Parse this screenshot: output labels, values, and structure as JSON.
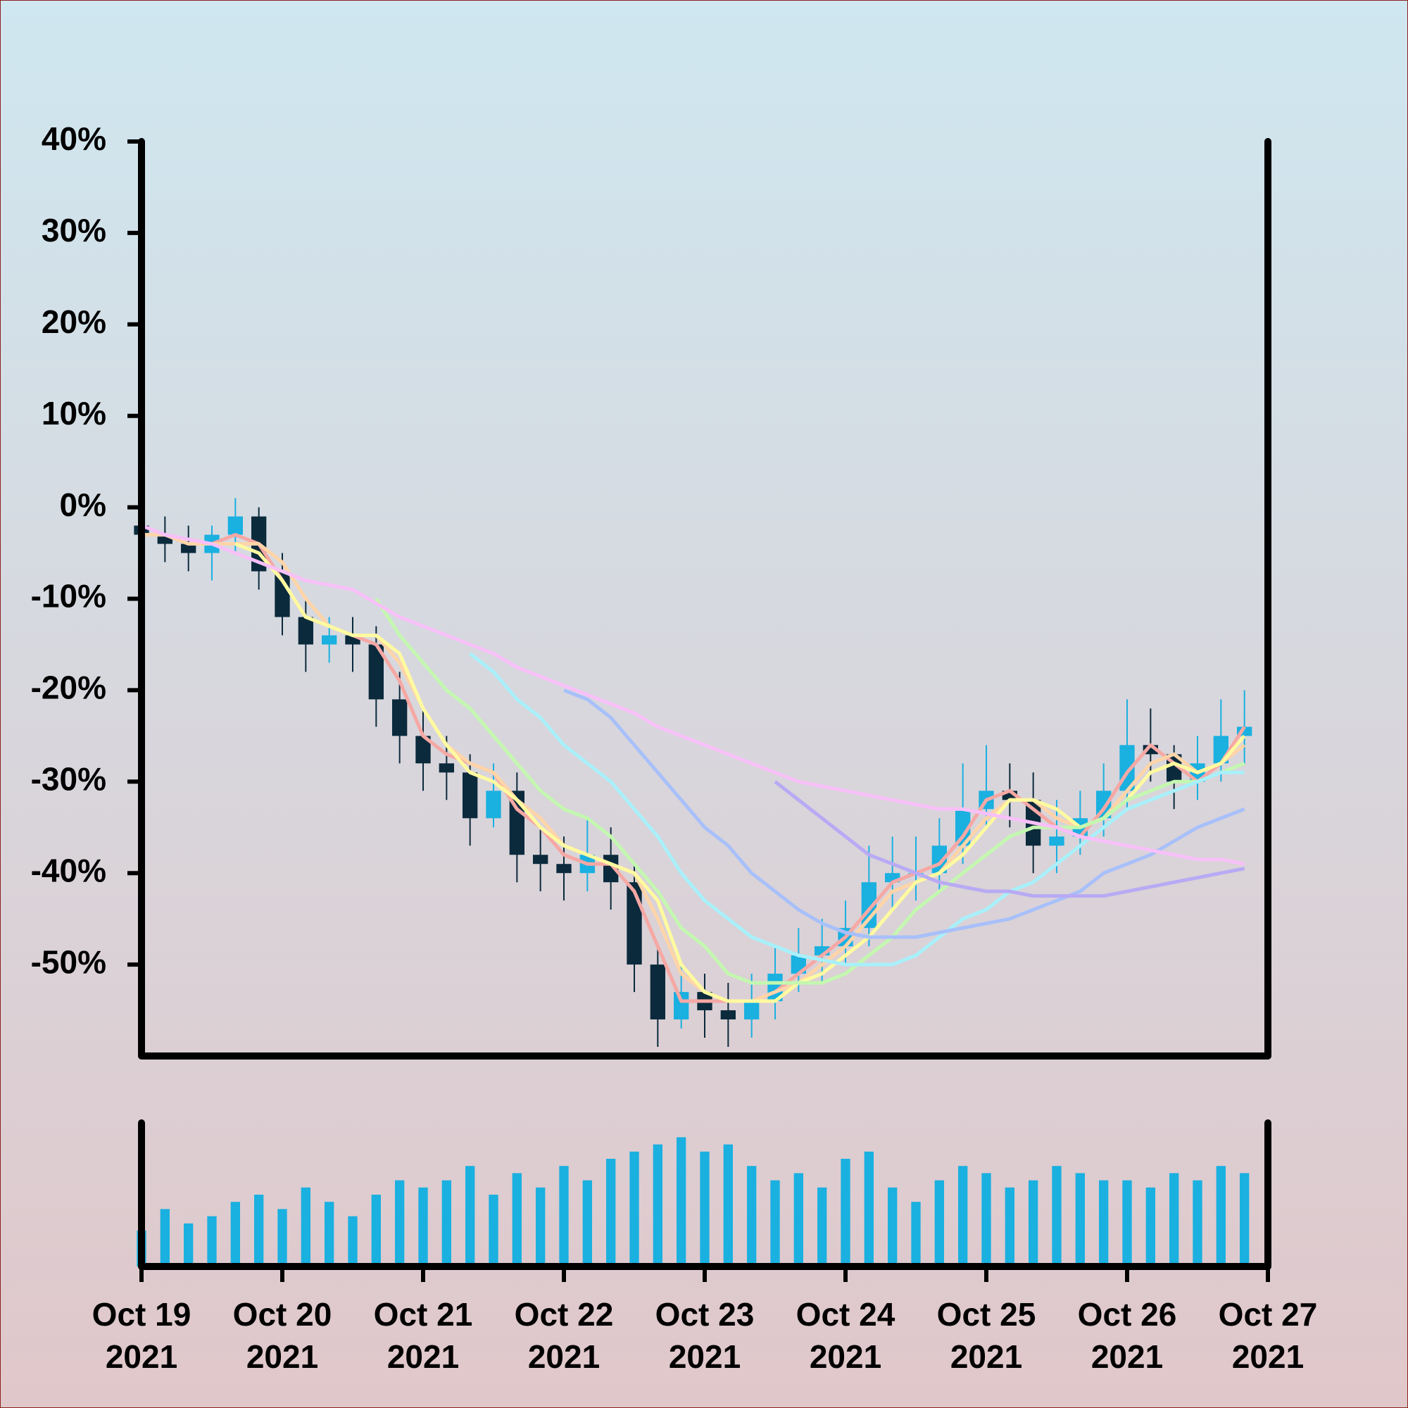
{
  "chart_data": [
    {
      "type": "candlestick",
      "x": [
        0,
        4,
        8,
        12,
        16,
        20,
        24,
        28,
        32,
        36,
        40,
        44,
        48,
        52,
        56,
        60,
        64,
        68,
        72,
        76,
        80,
        84,
        88,
        92,
        96,
        100,
        104,
        108,
        112,
        116,
        120,
        124,
        128,
        132,
        136,
        140,
        144,
        148,
        152,
        156,
        160,
        164,
        168,
        172,
        176,
        180,
        184,
        188
      ],
      "open": [
        -2,
        -3,
        -4,
        -5,
        -3,
        -1,
        -7,
        -12,
        -15,
        -14,
        -15,
        -21,
        -25,
        -28,
        -29,
        -34,
        -31,
        -38,
        -39,
        -40,
        -38,
        -41,
        -50,
        -56,
        -53,
        -55,
        -56,
        -54,
        -51,
        -49,
        -48,
        -46,
        -41,
        -40,
        -40,
        -37,
        -33,
        -31,
        -32,
        -37,
        -36,
        -34,
        -31,
        -26,
        -27,
        -30,
        -28,
        -25
      ],
      "high": [
        0,
        -1,
        -2,
        -2,
        1,
        0,
        -5,
        -10,
        -12,
        -12,
        -13,
        -18,
        -22,
        -25,
        -27,
        -28,
        -29,
        -35,
        -36,
        -34,
        -35,
        -39,
        -48,
        -50,
        -51,
        -52,
        -51,
        -48,
        -46,
        -45,
        -43,
        -37,
        -36,
        -36,
        -34,
        -28,
        -26,
        -28,
        -29,
        -32,
        -31,
        -28,
        -21,
        -22,
        -26,
        -25,
        -21,
        -20
      ],
      "low": [
        -6,
        -6,
        -7,
        -8,
        -5,
        -9,
        -14,
        -18,
        -17,
        -18,
        -24,
        -28,
        -31,
        -32,
        -37,
        -35,
        -41,
        -42,
        -43,
        -42,
        -44,
        -53,
        -59,
        -57,
        -58,
        -59,
        -58,
        -56,
        -53,
        -52,
        -50,
        -48,
        -44,
        -43,
        -42,
        -39,
        -35,
        -35,
        -40,
        -40,
        -38,
        -36,
        -33,
        -30,
        -33,
        -32,
        -30,
        -28
      ],
      "close": [
        -3,
        -4,
        -5,
        -3,
        -1,
        -7,
        -12,
        -15,
        -14,
        -15,
        -21,
        -25,
        -28,
        -29,
        -34,
        -31,
        -38,
        -39,
        -40,
        -38,
        -41,
        -50,
        -56,
        -53,
        -55,
        -56,
        -54,
        -51,
        -49,
        -48,
        -46,
        -41,
        -40,
        -40,
        -37,
        -33,
        -31,
        -32,
        -37,
        -36,
        -34,
        -31,
        -26,
        -27,
        -30,
        -28,
        -25,
        -24
      ],
      "up_color": "#1ab0e0",
      "down_color": "#0b2a3c",
      "series": [
        {
          "color": "#f6a8a4",
          "values": [
            -3,
            -3,
            -4,
            -4,
            -3,
            -4,
            -8,
            -12,
            -13,
            -14,
            -15,
            -19,
            -25,
            -27,
            -28,
            -29,
            -33,
            -35,
            -38,
            -39,
            -39,
            -42,
            -48,
            -54,
            -54,
            -54,
            -54,
            -53,
            -51,
            -49,
            -47,
            -44,
            -41,
            -40,
            -39,
            -36,
            -32,
            -31,
            -33,
            -35,
            -36,
            -33,
            -29,
            -26,
            -28,
            -30,
            -28,
            -24
          ]
        },
        {
          "color": "#ffd4a8",
          "values": [
            -3,
            -3,
            -4,
            -4,
            -4,
            -4,
            -6,
            -10,
            -13,
            -14,
            -14,
            -17,
            -22,
            -26,
            -28,
            -29,
            -32,
            -34,
            -37,
            -38,
            -39,
            -40,
            -45,
            -51,
            -53,
            -54,
            -54,
            -53,
            -52,
            -50,
            -48,
            -45,
            -42,
            -41,
            -40,
            -37,
            -34,
            -32,
            -32,
            -34,
            -35,
            -34,
            -31,
            -28,
            -27,
            -29,
            -28,
            -26
          ]
        },
        {
          "color": "#fffaa0",
          "values": [
            null,
            null,
            null,
            null,
            -4,
            -5,
            -8,
            -12,
            -13,
            -14,
            -14,
            -16,
            -22,
            -26,
            -29,
            -30,
            -32,
            -35,
            -37,
            -38,
            -39,
            -40,
            -43,
            -50,
            -53,
            -54,
            -54,
            -54,
            -52,
            -51,
            -49,
            -47,
            -44,
            -41,
            -40,
            -38,
            -35,
            -32,
            -32,
            -33,
            -35,
            -34,
            -32,
            -29,
            -28,
            -29,
            -28,
            -25
          ]
        },
        {
          "color": "#c4f7b0",
          "values": [
            null,
            null,
            null,
            null,
            null,
            null,
            null,
            null,
            null,
            null,
            -10,
            -14,
            -17,
            -20,
            -22,
            -25,
            -28,
            -31,
            -33,
            -34,
            -36,
            -39,
            -42,
            -46,
            -48,
            -51,
            -52,
            -52,
            -52,
            -52,
            -51,
            -49,
            -47,
            -44,
            -42,
            -40,
            -38,
            -36,
            -35,
            -35,
            -35,
            -34,
            -32,
            -31,
            -30,
            -30,
            -29,
            -28
          ]
        },
        {
          "color": "#a8f0fa",
          "values": [
            null,
            null,
            null,
            null,
            null,
            null,
            null,
            null,
            null,
            null,
            null,
            null,
            null,
            null,
            -16,
            -18,
            -21,
            -23,
            -26,
            -28,
            -30,
            -33,
            -36,
            -40,
            -43,
            -45,
            -47,
            -48,
            -49,
            -49.5,
            -50,
            -50,
            -50,
            -49,
            -47,
            -45,
            -44,
            -42,
            -41,
            -39,
            -37,
            -35,
            -33,
            -32,
            -31,
            -30,
            -29,
            -29
          ]
        },
        {
          "color": "#a8c0fa",
          "values": [
            null,
            null,
            null,
            null,
            null,
            null,
            null,
            null,
            null,
            null,
            null,
            null,
            null,
            null,
            null,
            null,
            null,
            null,
            -20,
            -21,
            -23,
            -26,
            -29,
            -32,
            -35,
            -37,
            -40,
            -42,
            -44,
            -45.5,
            -46.5,
            -47,
            -47,
            -47,
            -46.5,
            -46,
            -45.5,
            -45,
            -44,
            -43,
            -42,
            -40,
            -39,
            -38,
            -36.5,
            -35,
            -34,
            -33
          ]
        },
        {
          "color": "#b8aaf4",
          "values": [
            null,
            null,
            null,
            null,
            null,
            null,
            null,
            null,
            null,
            null,
            null,
            null,
            null,
            null,
            null,
            null,
            null,
            null,
            null,
            null,
            null,
            null,
            null,
            null,
            null,
            null,
            null,
            -30,
            -32,
            -34,
            -36,
            -38,
            -39,
            -40,
            -41,
            -41.5,
            -42,
            -42,
            -42.5,
            -42.5,
            -42.5,
            -42.5,
            -42,
            -41.5,
            -41,
            -40.5,
            -40,
            -39.5
          ]
        },
        {
          "color": "#f8c0f8",
          "values": [
            -2,
            -3,
            -3.5,
            -4,
            -5,
            -6,
            -7,
            -8,
            -8.5,
            -9,
            -10.5,
            -12,
            -13,
            -14,
            -15,
            -16,
            -17.5,
            -18.5,
            -19.5,
            -20.5,
            -21.5,
            -22.5,
            -24,
            -25,
            -26,
            -27,
            -28,
            -29,
            -30,
            -30.5,
            -31,
            -31.5,
            -32,
            -32.5,
            -33,
            -33,
            -33.5,
            -34,
            -34.5,
            -35,
            -36,
            -36.5,
            -37,
            -37.5,
            -38,
            -38.5,
            -38.5,
            -39
          ]
        }
      ],
      "xlim": [
        0,
        192
      ],
      "ylim": [
        -60,
        40
      ],
      "yticks": [
        {
          "value": 40,
          "label": "40%"
        },
        {
          "value": 30,
          "label": "30%"
        },
        {
          "value": 20,
          "label": "20%"
        },
        {
          "value": 10,
          "label": "10%"
        },
        {
          "value": 0,
          "label": "0%"
        },
        {
          "value": -10,
          "label": "-10%"
        },
        {
          "value": -20,
          "label": "-20%"
        },
        {
          "value": -30,
          "label": "-30%"
        },
        {
          "value": -40,
          "label": "-40%"
        },
        {
          "value": -50,
          "label": "-50%"
        }
      ]
    },
    {
      "type": "bar",
      "x": [
        0,
        4,
        8,
        12,
        16,
        20,
        24,
        28,
        32,
        36,
        40,
        44,
        48,
        52,
        56,
        60,
        64,
        68,
        72,
        76,
        80,
        84,
        88,
        92,
        96,
        100,
        104,
        108,
        112,
        116,
        120,
        124,
        128,
        132,
        136,
        140,
        144,
        148,
        152,
        156,
        160,
        164,
        168,
        172,
        176,
        180,
        184,
        188
      ],
      "values": [
        25,
        40,
        30,
        35,
        45,
        50,
        40,
        55,
        45,
        35,
        50,
        60,
        55,
        60,
        70,
        50,
        65,
        55,
        70,
        60,
        75,
        80,
        85,
        90,
        80,
        85,
        70,
        60,
        65,
        55,
        75,
        80,
        55,
        45,
        60,
        70,
        65,
        55,
        60,
        70,
        65,
        60,
        60,
        55,
        65,
        60,
        70,
        65
      ],
      "color": "#1ab0e0",
      "xlim": [
        0,
        192
      ],
      "ylim": [
        0,
        100
      ],
      "xticks": [
        {
          "value": 0,
          "label": "Oct 19\n2021"
        },
        {
          "value": 24,
          "label": "Oct 20\n2021"
        },
        {
          "value": 48,
          "label": "Oct 21\n2021"
        },
        {
          "value": 72,
          "label": "Oct 22\n2021"
        },
        {
          "value": 96,
          "label": "Oct 23\n2021"
        },
        {
          "value": 120,
          "label": "Oct 24\n2021"
        },
        {
          "value": 144,
          "label": "Oct 25\n2021"
        },
        {
          "value": 168,
          "label": "Oct 26\n2021"
        },
        {
          "value": 192,
          "label": "Oct 27\n2021"
        }
      ]
    }
  ]
}
